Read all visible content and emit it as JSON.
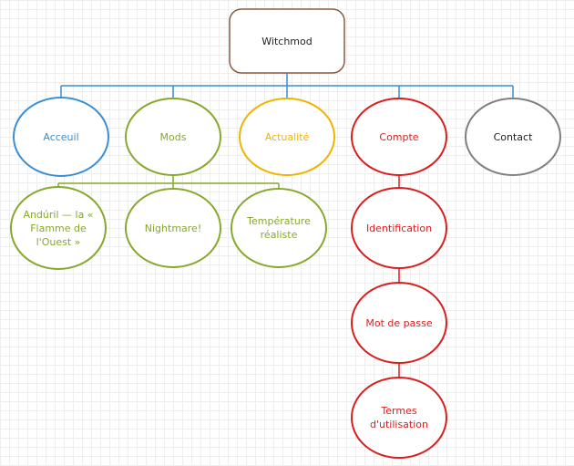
{
  "colors": {
    "root": "#8a5a44",
    "blue": "#3a8ed1",
    "green": "#86a82c",
    "yellow": "#f0b400",
    "red": "#d91e1e",
    "gray": "#7f7f7f",
    "black": "#222222"
  },
  "nodes": {
    "root": "Witchmod",
    "acceuil": "Acceuil",
    "mods": "Mods",
    "actualite": "Actualité",
    "compte": "Compte",
    "contact": "Contact",
    "anduril": "Andúril — la « Flamme de l'Ouest »",
    "nightmare": "Nightmare!",
    "temperature": "Température réaliste",
    "identification": "Identification",
    "mot_de_passe": "Mot de passe",
    "termes": "Termes d'utilisation"
  }
}
